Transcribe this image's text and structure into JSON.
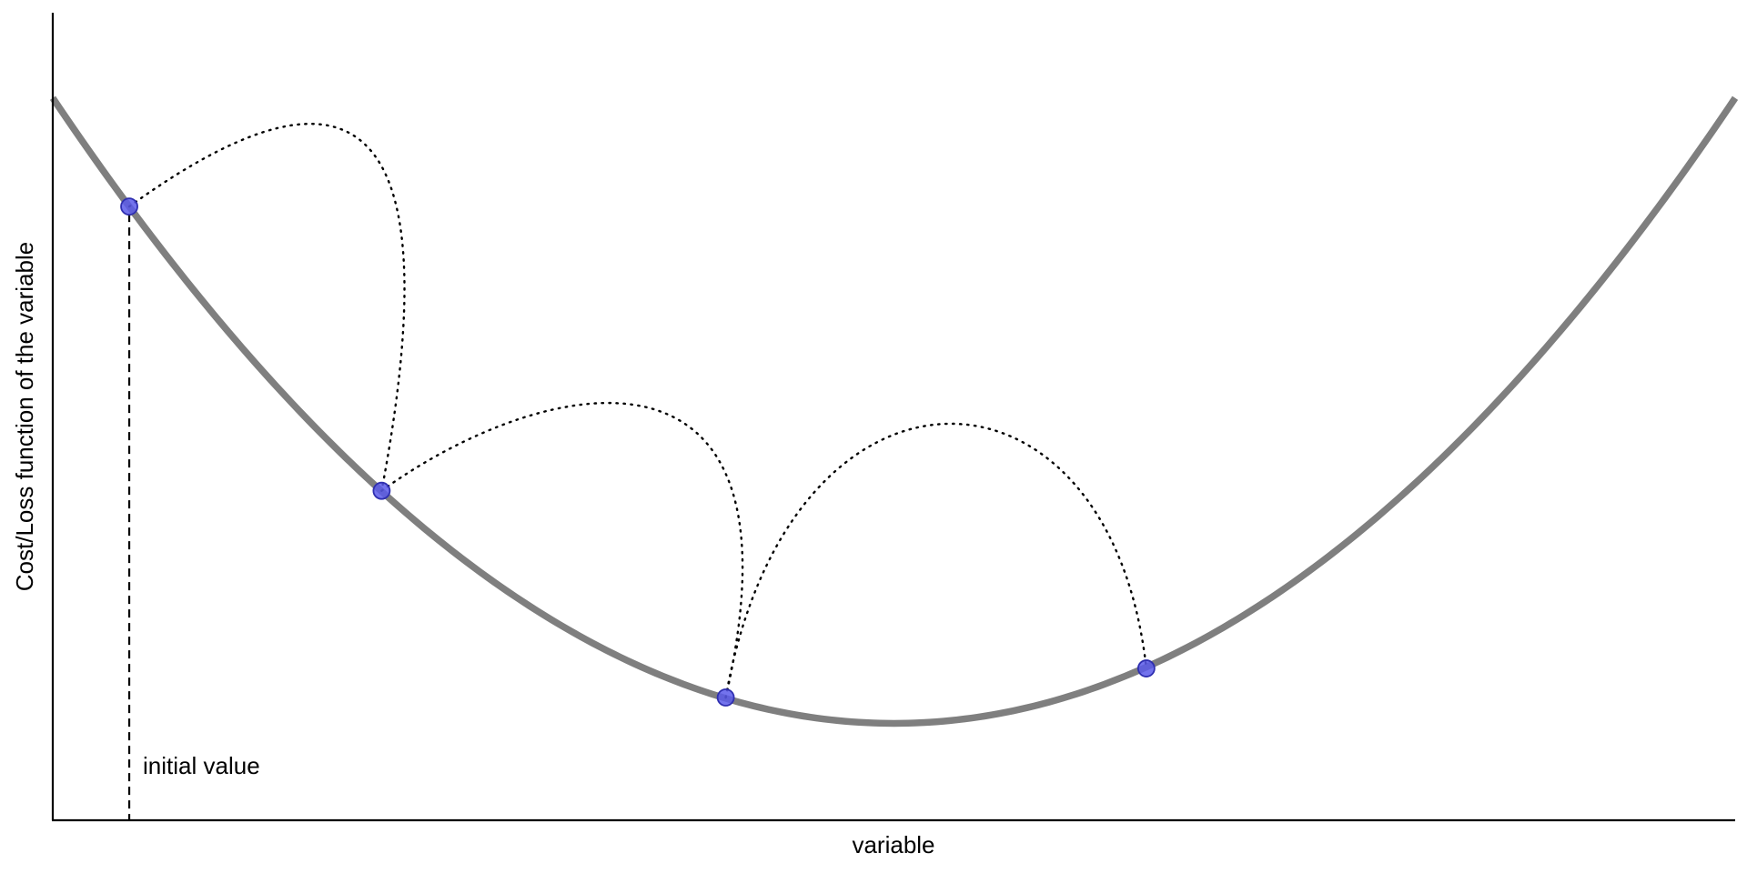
{
  "chart_data": {
    "type": "line",
    "title": "",
    "xlabel": "variable",
    "ylabel": "Cost/Loss function of the variable",
    "xlim": [
      -2.2,
      2.2
    ],
    "ylim": [
      0,
      2.5
    ],
    "ticks": "none",
    "grid": false,
    "series": [
      {
        "kind": "curve",
        "function": "y = 0.3 + 0.4 * x^2",
        "x_range": [
          -2.2,
          2.2
        ],
        "color": "#7f7f7f"
      },
      {
        "kind": "steps",
        "x": [
          -2.0,
          -1.34,
          -0.44,
          0.66
        ],
        "y": [
          1.9,
          1.02,
          0.38,
          0.47
        ],
        "color": "#3f3fdf"
      }
    ],
    "annotations": [
      {
        "text": "initial value",
        "x": -2.0
      }
    ]
  },
  "colors": {
    "curve": "#7f7f7f",
    "point_fill": "#5b5bea",
    "point_stroke": "#2f2fb0",
    "axis": "#000000"
  }
}
